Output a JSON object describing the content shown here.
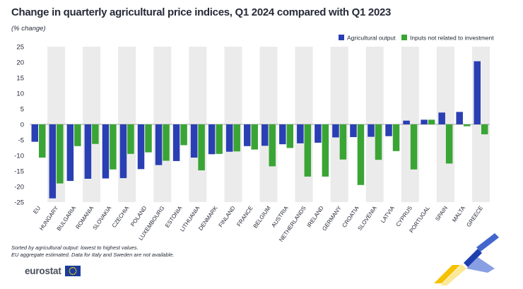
{
  "title": "Change in quarterly agricultural price indices, Q1 2024 compared with Q1 2023",
  "subtitle": "(% change)",
  "notes": [
    "Sorted by agricultural output: lowest to highest values.",
    "EU aggregate estimated. Data for Italy and Sweden are not available."
  ],
  "logo": {
    "text": "eurostat",
    "flag_icon": "eu-flag-icon"
  },
  "colors": {
    "series1": "#2a3fb3",
    "series2": "#3aa535",
    "band": "#ebebeb"
  },
  "chart_data": {
    "type": "bar",
    "categories": [
      "EU",
      "HUNGARY",
      "BULGARIA",
      "ROMANIA",
      "SLOVAKIA",
      "CZECHIA",
      "POLAND",
      "LUXEMBOURG",
      "ESTONIA",
      "LITHUANIA",
      "DENMARK",
      "FINLAND",
      "FRANCE",
      "BELGIUM",
      "AUSTRIA",
      "NETHERLANDS",
      "IRELAND",
      "GERMANY",
      "CROATIA",
      "SLOVENIA",
      "LATVIA",
      "CYPRUS",
      "PORTUGAL",
      "SPAIN",
      "MALTA",
      "GREECE"
    ],
    "series": [
      {
        "name": "Agricultural output",
        "color": "#2a3fb3",
        "values": [
          -5.6,
          -23.8,
          -18.2,
          -17.5,
          -17.4,
          -17.3,
          -14.4,
          -13.1,
          -11.8,
          -10.7,
          -9.6,
          -8.8,
          -7.0,
          -6.9,
          -6.4,
          -6.1,
          -5.9,
          -4.2,
          -4.1,
          -4.0,
          -3.8,
          1.2,
          1.5,
          3.8,
          4.0,
          20.3
        ]
      },
      {
        "name": "Inputs not related to investment",
        "color": "#3aa535",
        "values": [
          -10.7,
          -19.0,
          -7.0,
          -6.3,
          -14.5,
          -9.5,
          -9.0,
          -11.7,
          -6.7,
          -14.8,
          -9.5,
          -8.7,
          -8.1,
          -13.5,
          -7.6,
          -16.8,
          -16.8,
          -11.3,
          -19.5,
          -11.4,
          -8.6,
          -14.5,
          1.5,
          -12.6,
          -0.6,
          -3.2
        ]
      }
    ],
    "yticks": [
      25,
      20,
      15,
      10,
      5,
      0,
      -5,
      -10,
      -15,
      -20,
      -25
    ],
    "ylim": [
      -25,
      25
    ],
    "xlabel": "",
    "ylabel": "",
    "legend_position": "top-right",
    "grid": "alternating category bands"
  }
}
